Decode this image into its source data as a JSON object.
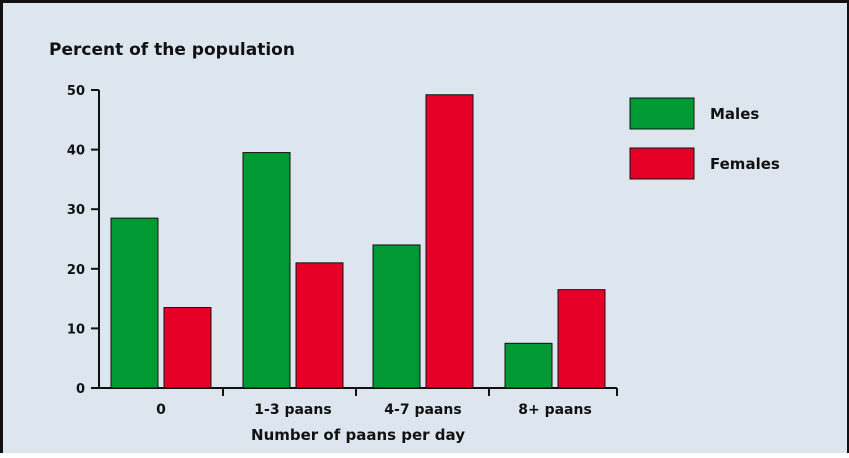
{
  "chart_data": {
    "type": "bar",
    "title": "Percent of the population",
    "xlabel": "Number of paans per day",
    "ylabel": "",
    "ylim": [
      0,
      50
    ],
    "yticks": [
      0,
      10,
      20,
      30,
      40,
      50
    ],
    "categories": [
      "0",
      "1-3 paans",
      "4-7 paans",
      "8+ paans"
    ],
    "series": [
      {
        "name": "Males",
        "color": "#009933",
        "values": [
          28.5,
          39.5,
          24,
          7.5
        ]
      },
      {
        "name": "Females",
        "color": "#e60028",
        "values": [
          13.5,
          21,
          49.2,
          16.5
        ]
      }
    ],
    "grid": false,
    "legend": "right"
  }
}
